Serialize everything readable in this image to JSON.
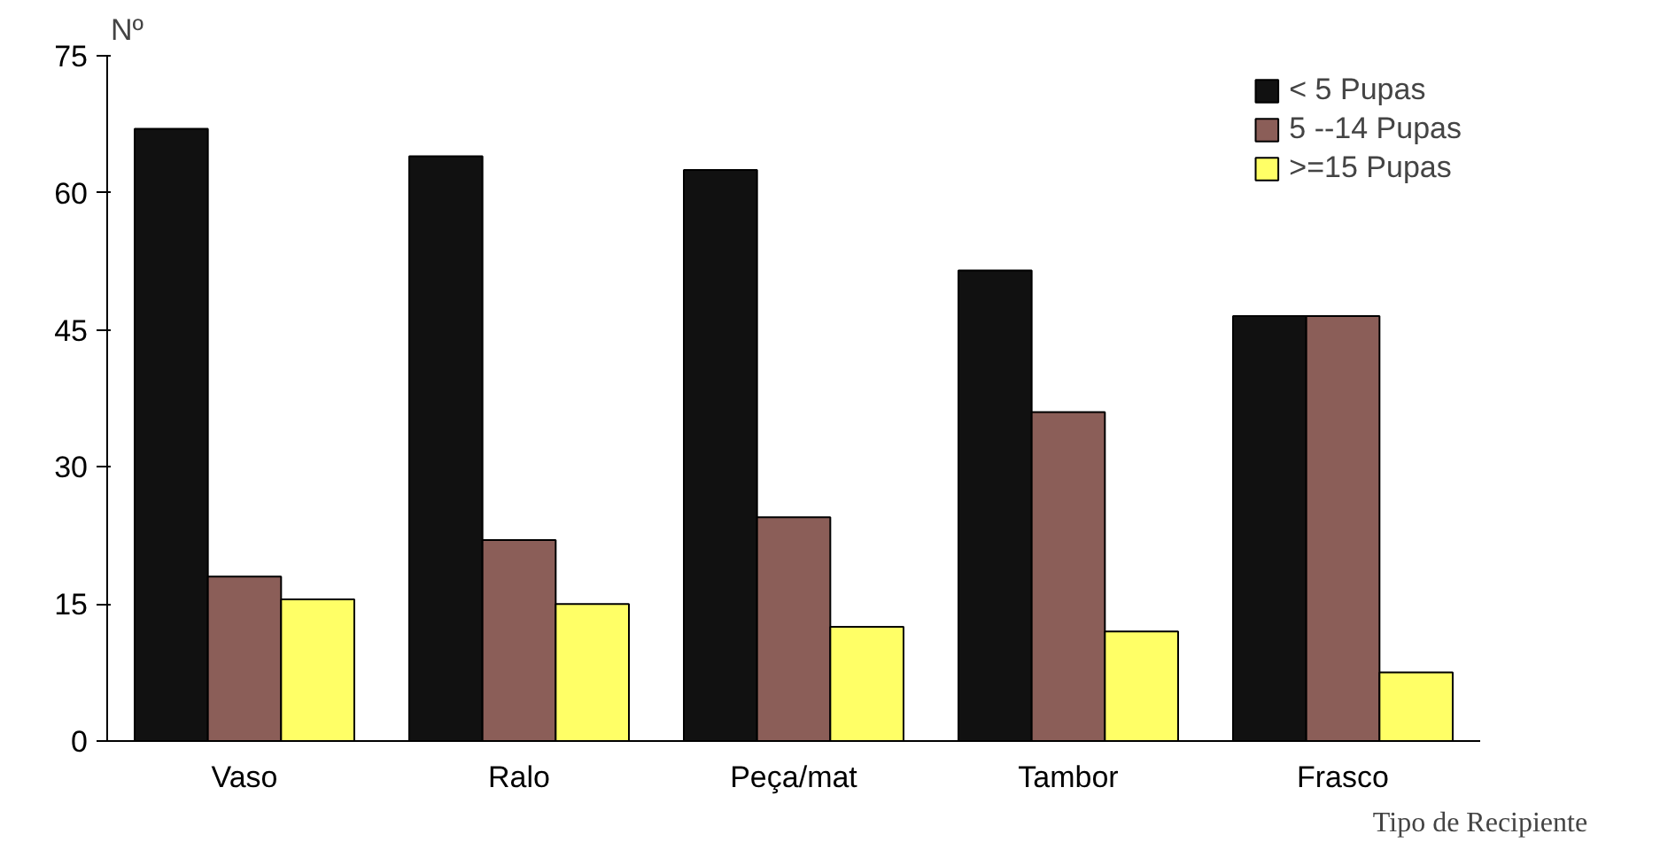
{
  "chart_data": {
    "type": "bar",
    "ylabel": "Nº",
    "xlabel": "Tipo de Recipiente",
    "categories": [
      "Vaso",
      "Ralo",
      "Peça/mat",
      "Tambor",
      "Frasco"
    ],
    "series": [
      {
        "name": "< 5 Pupas",
        "color": "#111111",
        "values": [
          67,
          64,
          62.5,
          51.5,
          46.5
        ]
      },
      {
        "name": "5 --14 Pupas",
        "color": "#8b5e58",
        "values": [
          18,
          22,
          24.5,
          36,
          46.5
        ]
      },
      {
        "name": ">=15 Pupas",
        "color": "#ffff66",
        "values": [
          15.5,
          15,
          12.5,
          12,
          7.5
        ]
      }
    ],
    "ylim": [
      0,
      75
    ],
    "yticks": [
      0,
      15,
      30,
      45,
      60,
      75
    ],
    "grid": false,
    "legend": "top right"
  }
}
